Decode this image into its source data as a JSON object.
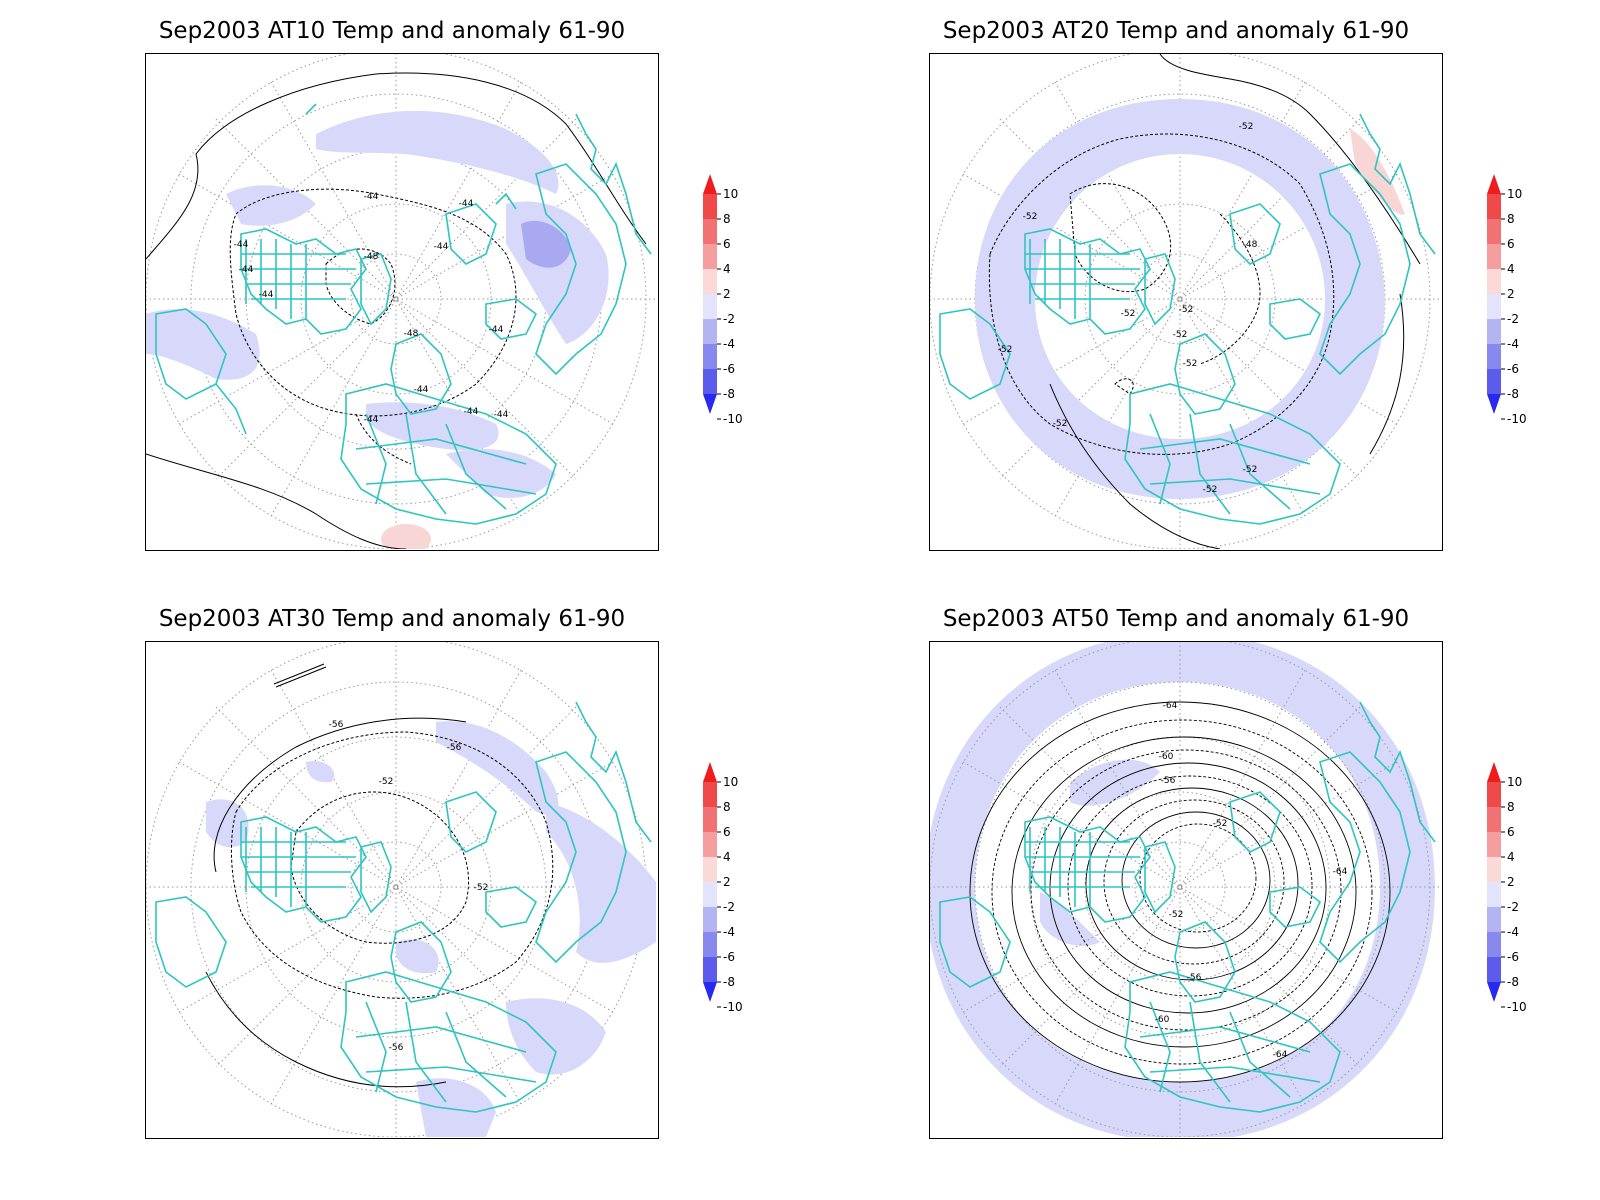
{
  "colors": {
    "coast": "#2ec5c0",
    "neg_light": "#d8d8fb",
    "neg_med": "#a9a9f2",
    "pos_light": "#f9d6d6",
    "contour": "#000000",
    "grid": "#909090"
  },
  "colorbar": {
    "labels": [
      "10",
      "8",
      "6",
      "4",
      "2",
      "-2",
      "-4",
      "-6",
      "-8",
      "-10"
    ],
    "colors": [
      "#ee1c1c",
      "#f0494a",
      "#f27172",
      "#f59e9f",
      "#fbd9d9",
      "#e3e3fb",
      "#b4b4f3",
      "#8888ee",
      "#5b5bec",
      "#2a2aef"
    ]
  },
  "panels": [
    {
      "title": "Sep2003 AT10 Temp and anomaly 61-90",
      "contour_labels": [
        "-44",
        "-44",
        "-48",
        "-44",
        "-44",
        "-44",
        "-48",
        "-44",
        "-44",
        "-44",
        "-44",
        "-44",
        "-44"
      ]
    },
    {
      "title": "Sep2003 AT20 Temp and anomaly 61-90",
      "contour_labels": [
        "-52",
        "-52",
        "-48",
        "-52",
        "-52",
        "-52",
        "-52",
        "-52",
        "-52",
        "-52",
        "-52"
      ]
    },
    {
      "title": "Sep2003 AT30 Temp and anomaly 61-90",
      "contour_labels": [
        "-56",
        "-56",
        "-52",
        "-52",
        "-56"
      ]
    },
    {
      "title": "Sep2003 AT50 Temp and anomaly 61-90",
      "contour_labels": [
        "-64",
        "-60",
        "-56",
        "-52",
        "-52",
        "-56",
        "-60",
        "-64",
        "-64"
      ]
    }
  ]
}
